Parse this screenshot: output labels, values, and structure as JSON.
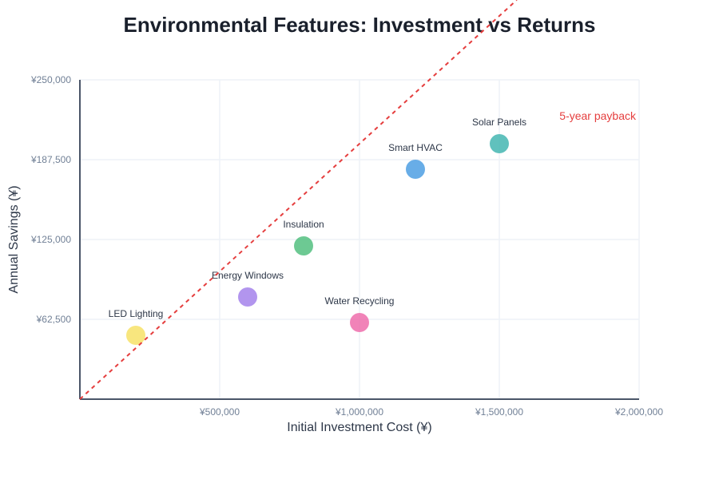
{
  "chart_data": {
    "type": "scatter",
    "title": "Environmental Features: Investment vs Returns",
    "xlabel": "Initial Investment Cost (¥)",
    "ylabel": "Annual Savings (¥)",
    "xlim": [
      0,
      2000000
    ],
    "ylim": [
      0,
      250000
    ],
    "grid": true,
    "x_ticks": [
      500000,
      1000000,
      1500000,
      2000000
    ],
    "x_tick_labels": [
      "¥500,000",
      "¥1,000,000",
      "¥1,500,000",
      "¥2,000,000"
    ],
    "y_ticks": [
      62500,
      125000,
      187500,
      250000
    ],
    "y_tick_labels": [
      "¥62,500",
      "¥125,000",
      "¥187,500",
      "¥250,000"
    ],
    "points": [
      {
        "label": "LED Lighting",
        "x": 200000,
        "y": 50000,
        "color": "#f6e05e"
      },
      {
        "label": "Energy Windows",
        "x": 600000,
        "y": 80000,
        "color": "#9f7aea"
      },
      {
        "label": "Insulation",
        "x": 800000,
        "y": 120000,
        "color": "#48bb78"
      },
      {
        "label": "Water Recycling",
        "x": 1000000,
        "y": 60000,
        "color": "#ed64a6"
      },
      {
        "label": "Smart HVAC",
        "x": 1200000,
        "y": 180000,
        "color": "#4299e1"
      },
      {
        "label": "Solar Panels",
        "x": 1500000,
        "y": 200000,
        "color": "#38b2ac"
      }
    ],
    "reference_line": {
      "label": "5-year payback",
      "slope": 0.2,
      "color": "#e53e3e",
      "style": "dashed"
    }
  }
}
